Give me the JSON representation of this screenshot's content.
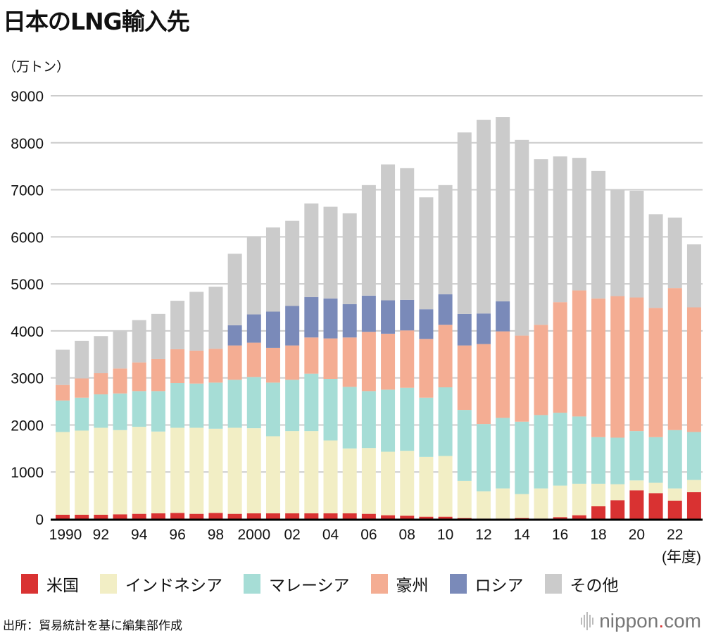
{
  "title": "日本のLNG輸入先",
  "unit_label": "（万トン）",
  "x_unit_label": "(年度)",
  "source": "出所：貿易統計を基に編集部作成",
  "logo": {
    "text_main": "nippon",
    "dot": ".",
    "text_end": "com"
  },
  "colors": {
    "米国": "#d93232",
    "インドネシア": "#f2eec5",
    "マレーシア": "#a6ddd6",
    "豪州": "#f4ad93",
    "ロシア": "#7a8ab9",
    "その他": "#cbcbcb",
    "grid": "#cccccc"
  },
  "chart_data": {
    "type": "bar",
    "stacked": true,
    "title": "日本のLNG輸入先",
    "ylabel": "（万トン）",
    "xlabel": "(年度)",
    "ylim": [
      0,
      9000
    ],
    "yticks": [
      0,
      1000,
      2000,
      3000,
      4000,
      5000,
      6000,
      7000,
      8000,
      9000
    ],
    "grid": true,
    "legend_position": "bottom",
    "categories": [
      1990,
      1991,
      1992,
      1993,
      1994,
      1995,
      1996,
      1997,
      1998,
      1999,
      2000,
      2001,
      2002,
      2003,
      2004,
      2005,
      2006,
      2007,
      2008,
      2009,
      2010,
      2011,
      2012,
      2013,
      2014,
      2015,
      2016,
      2017,
      2018,
      2019,
      2020,
      2021,
      2022,
      2023
    ],
    "xtick_labels": [
      "1990",
      "92",
      "94",
      "96",
      "98",
      "2000",
      "02",
      "04",
      "06",
      "08",
      "10",
      "12",
      "14",
      "16",
      "18",
      "20",
      "22"
    ],
    "series": [
      {
        "name": "米国",
        "values": [
          90,
          90,
          90,
          100,
          110,
          120,
          130,
          110,
          130,
          110,
          120,
          120,
          120,
          120,
          120,
          120,
          110,
          80,
          70,
          50,
          50,
          20,
          10,
          10,
          20,
          10,
          40,
          80,
          270,
          400,
          610,
          550,
          390,
          570
        ]
      },
      {
        "name": "インドネシア",
        "values": [
          1760,
          1790,
          1850,
          1790,
          1850,
          1740,
          1810,
          1830,
          1790,
          1830,
          1810,
          1640,
          1750,
          1750,
          1550,
          1380,
          1400,
          1350,
          1380,
          1270,
          1290,
          790,
          580,
          640,
          510,
          640,
          670,
          670,
          480,
          340,
          210,
          220,
          260,
          260
        ]
      },
      {
        "name": "マレーシア",
        "values": [
          670,
          700,
          710,
          780,
          760,
          860,
          950,
          940,
          980,
          1020,
          1090,
          1140,
          1090,
          1220,
          1310,
          1310,
          1210,
          1320,
          1340,
          1260,
          1460,
          1510,
          1430,
          1500,
          1540,
          1560,
          1550,
          1430,
          990,
          990,
          1050,
          970,
          1240,
          1020
        ]
      },
      {
        "name": "豪州",
        "values": [
          330,
          410,
          450,
          530,
          610,
          680,
          720,
          700,
          720,
          730,
          730,
          740,
          730,
          770,
          860,
          1050,
          1260,
          1190,
          1220,
          1250,
          1330,
          1370,
          1700,
          1840,
          1830,
          1920,
          2350,
          2680,
          2950,
          3010,
          2840,
          2750,
          3020,
          2650
        ]
      },
      {
        "name": "ロシア",
        "values": [
          0,
          0,
          0,
          0,
          0,
          0,
          0,
          0,
          0,
          430,
          600,
          770,
          840,
          860,
          850,
          710,
          770,
          710,
          650,
          630,
          650,
          670,
          650,
          640,
          0,
          0,
          0,
          0,
          0,
          0,
          0,
          0,
          0,
          0
        ]
      },
      {
        "name": "その他",
        "values": [
          750,
          800,
          790,
          790,
          900,
          960,
          1030,
          1250,
          1320,
          1520,
          1660,
          1790,
          1810,
          1990,
          1950,
          1930,
          2350,
          2890,
          2800,
          2380,
          2320,
          3860,
          4120,
          3920,
          4160,
          3520,
          3100,
          2820,
          2710,
          2270,
          2270,
          1990,
          1500,
          1340
        ]
      }
    ]
  }
}
